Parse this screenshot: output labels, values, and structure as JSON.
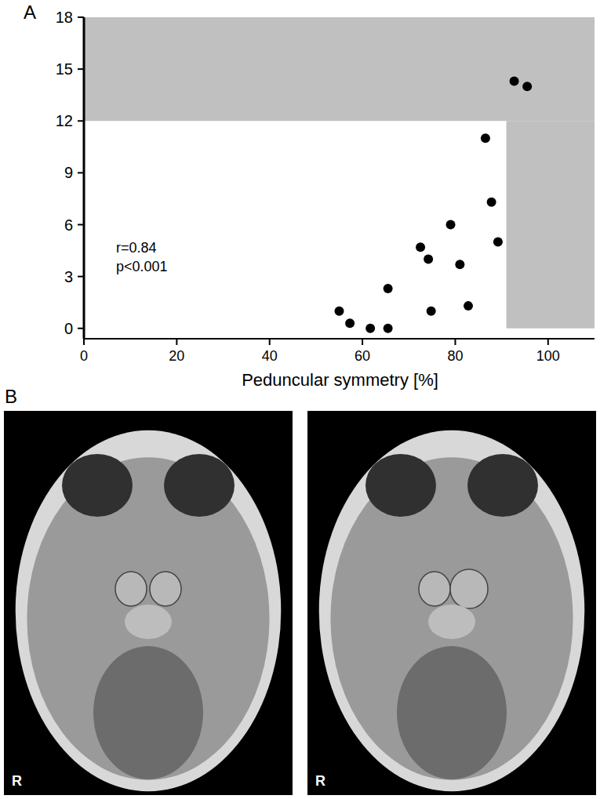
{
  "chart_data": {
    "type": "scatter",
    "panel": "A",
    "x_label": "Peduncular symmetry [%]",
    "annotations": [
      "r=0.84",
      "p<0.001"
    ],
    "x": [
      55,
      57.3,
      61.7,
      65.5,
      65.5,
      72.5,
      74.2,
      74.8,
      79,
      81,
      82.8,
      86.5,
      87.8,
      89.2,
      92.7,
      95.5
    ],
    "values": [
      1.0,
      0.3,
      0,
      0,
      2.3,
      4.7,
      4.0,
      1.0,
      6.0,
      3.7,
      1.3,
      11.0,
      7.3,
      5.0,
      14.3,
      14.0
    ],
    "color": "#000000",
    "marker": "circle",
    "xlim": [
      0,
      110
    ],
    "xticks": [
      0,
      20,
      40,
      60,
      80,
      100
    ],
    "ylim": [
      -0.6,
      18
    ],
    "yticks": [
      0,
      3,
      6,
      9,
      12,
      15,
      18
    ],
    "grid": false,
    "regions": [
      {
        "x": [
          0,
          110
        ],
        "y": [
          12,
          18
        ],
        "color": "#c0c0c0"
      },
      {
        "x": [
          91,
          110
        ],
        "y": [
          0,
          12
        ],
        "color": "#c0c0c0"
      }
    ]
  },
  "panel_b": {
    "label": "B",
    "images": [
      {
        "corner_label": "R"
      },
      {
        "corner_label": "R"
      }
    ]
  }
}
